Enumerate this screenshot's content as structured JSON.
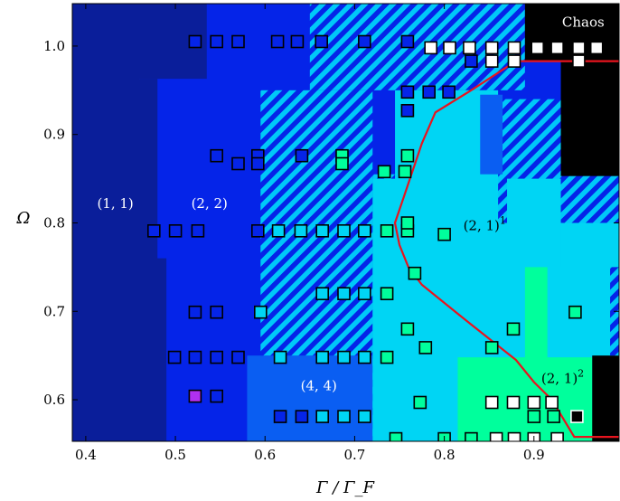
{
  "chart_data": {
    "type": "scatter",
    "title": "",
    "xlabel": "Γ / Γ_F",
    "ylabel": "Ω",
    "xlim": [
      0.385,
      0.995
    ],
    "ylim": [
      0.553,
      1.048
    ],
    "x_ticks": [
      "0.4",
      "0.5",
      "0.6",
      "0.7",
      "0.8",
      "0.9"
    ],
    "y_ticks": [
      "0.6",
      "0.7",
      "0.8",
      "0.9",
      "1.0"
    ],
    "grid": false,
    "colors": {
      "c11": "#0a1e9a",
      "c22": "#0524e8",
      "c44": "#0a5ef2",
      "c21_1": "#00d5f4",
      "c21_2": "#00ff9c",
      "chaos": "#000000",
      "stripe": "#00c8f8",
      "boundary": "#e8141e"
    },
    "regions": [
      {
        "label": "(1, 1)",
        "sup": "",
        "color": "c11",
        "label_at": [
          0.433,
          0.822
        ]
      },
      {
        "label": "(2, 2)",
        "sup": "",
        "color": "c22",
        "label_at": [
          0.538,
          0.822
        ]
      },
      {
        "label": "(4, 4)",
        "sup": "",
        "color": "c44",
        "label_at": [
          0.66,
          0.616
        ]
      },
      {
        "label": "(2, 1)",
        "sup": "1",
        "color": "c21_1",
        "label_at": [
          0.845,
          0.797
        ]
      },
      {
        "label": "(2, 1)",
        "sup": "2",
        "color": "c21_2",
        "label_at": [
          0.932,
          0.624
        ]
      },
      {
        "label": "Chaos",
        "sup": "",
        "color": "chaos",
        "label_at": [
          0.955,
          1.027
        ]
      }
    ],
    "boundary_curve": {
      "name": "",
      "x": [
        0.995,
        0.88,
        0.83,
        0.79,
        0.775,
        0.755,
        0.745,
        0.75,
        0.76,
        0.775,
        0.83,
        0.88,
        0.9,
        0.92,
        0.945,
        0.995
      ],
      "y": [
        0.983,
        0.983,
        0.95,
        0.925,
        0.89,
        0.83,
        0.8,
        0.775,
        0.75,
        0.73,
        0.685,
        0.645,
        0.62,
        0.6,
        0.558,
        0.558
      ]
    },
    "markers": [
      {
        "x": 0.522,
        "y": 1.005,
        "c": "c22"
      },
      {
        "x": 0.546,
        "y": 1.005,
        "c": "c22"
      },
      {
        "x": 0.57,
        "y": 1.005,
        "c": "c22"
      },
      {
        "x": 0.614,
        "y": 1.005,
        "c": "c22"
      },
      {
        "x": 0.636,
        "y": 1.005,
        "c": "c22"
      },
      {
        "x": 0.663,
        "y": 1.005,
        "c": "c22"
      },
      {
        "x": 0.711,
        "y": 1.005,
        "c": "c22"
      },
      {
        "x": 0.759,
        "y": 1.005,
        "c": "c22"
      },
      {
        "x": 0.785,
        "y": 0.998,
        "c": "w"
      },
      {
        "x": 0.806,
        "y": 0.998,
        "c": "w"
      },
      {
        "x": 0.828,
        "y": 0.998,
        "c": "w"
      },
      {
        "x": 0.853,
        "y": 0.998,
        "c": "w"
      },
      {
        "x": 0.853,
        "y": 0.983,
        "c": "w"
      },
      {
        "x": 0.878,
        "y": 0.998,
        "c": "w"
      },
      {
        "x": 0.878,
        "y": 0.983,
        "c": "w"
      },
      {
        "x": 0.904,
        "y": 0.998,
        "c": "w"
      },
      {
        "x": 0.926,
        "y": 0.998,
        "c": "w"
      },
      {
        "x": 0.95,
        "y": 0.998,
        "c": "w"
      },
      {
        "x": 0.97,
        "y": 0.998,
        "c": "w"
      },
      {
        "x": 0.95,
        "y": 0.983,
        "c": "w"
      },
      {
        "x": 0.83,
        "y": 0.983,
        "c": "c22"
      },
      {
        "x": 0.759,
        "y": 0.948,
        "c": "c22"
      },
      {
        "x": 0.783,
        "y": 0.948,
        "c": "c22"
      },
      {
        "x": 0.805,
        "y": 0.948,
        "c": "c22"
      },
      {
        "x": 0.759,
        "y": 0.927,
        "c": "c22"
      },
      {
        "x": 0.546,
        "y": 0.876,
        "c": "c22"
      },
      {
        "x": 0.57,
        "y": 0.867,
        "c": "c22"
      },
      {
        "x": 0.592,
        "y": 0.876,
        "c": "c22"
      },
      {
        "x": 0.592,
        "y": 0.867,
        "c": "c22"
      },
      {
        "x": 0.641,
        "y": 0.876,
        "c": "c22"
      },
      {
        "x": 0.686,
        "y": 0.876,
        "c": "c21_2"
      },
      {
        "x": 0.686,
        "y": 0.867,
        "c": "c21_2"
      },
      {
        "x": 0.759,
        "y": 0.876,
        "c": "c21_2"
      },
      {
        "x": 0.756,
        "y": 0.858,
        "c": "c21_2"
      },
      {
        "x": 0.733,
        "y": 0.858,
        "c": "c21_2"
      },
      {
        "x": 0.476,
        "y": 0.791,
        "c": "c22"
      },
      {
        "x": 0.5,
        "y": 0.791,
        "c": "c22"
      },
      {
        "x": 0.525,
        "y": 0.791,
        "c": "c22"
      },
      {
        "x": 0.592,
        "y": 0.791,
        "c": "c22"
      },
      {
        "x": 0.615,
        "y": 0.791,
        "c": "c21_1"
      },
      {
        "x": 0.64,
        "y": 0.791,
        "c": "c21_1"
      },
      {
        "x": 0.664,
        "y": 0.791,
        "c": "c21_1"
      },
      {
        "x": 0.688,
        "y": 0.791,
        "c": "c21_1"
      },
      {
        "x": 0.711,
        "y": 0.791,
        "c": "c21_1"
      },
      {
        "x": 0.736,
        "y": 0.791,
        "c": "c21_2"
      },
      {
        "x": 0.759,
        "y": 0.791,
        "c": "c21_2"
      },
      {
        "x": 0.759,
        "y": 0.8,
        "c": "c21_2"
      },
      {
        "x": 0.8,
        "y": 0.787,
        "c": "c21_2"
      },
      {
        "x": 0.767,
        "y": 0.743,
        "c": "c21_2"
      },
      {
        "x": 0.595,
        "y": 0.699,
        "c": "c21_1"
      },
      {
        "x": 0.664,
        "y": 0.72,
        "c": "c21_1"
      },
      {
        "x": 0.688,
        "y": 0.72,
        "c": "c21_1"
      },
      {
        "x": 0.711,
        "y": 0.72,
        "c": "c21_1"
      },
      {
        "x": 0.736,
        "y": 0.72,
        "c": "c21_2"
      },
      {
        "x": 0.522,
        "y": 0.699,
        "c": "c22"
      },
      {
        "x": 0.546,
        "y": 0.699,
        "c": "c22"
      },
      {
        "x": 0.759,
        "y": 0.68,
        "c": "c21_2"
      },
      {
        "x": 0.877,
        "y": 0.68,
        "c": "c21_2"
      },
      {
        "x": 0.946,
        "y": 0.699,
        "c": "c21_2"
      },
      {
        "x": 0.499,
        "y": 0.648,
        "c": "c22"
      },
      {
        "x": 0.522,
        "y": 0.648,
        "c": "c22"
      },
      {
        "x": 0.546,
        "y": 0.648,
        "c": "c22"
      },
      {
        "x": 0.57,
        "y": 0.648,
        "c": "c22"
      },
      {
        "x": 0.617,
        "y": 0.648,
        "c": "c21_1"
      },
      {
        "x": 0.664,
        "y": 0.648,
        "c": "c21_1"
      },
      {
        "x": 0.688,
        "y": 0.648,
        "c": "c21_1"
      },
      {
        "x": 0.711,
        "y": 0.648,
        "c": "c21_1"
      },
      {
        "x": 0.736,
        "y": 0.648,
        "c": "c21_2"
      },
      {
        "x": 0.779,
        "y": 0.659,
        "c": "c21_2"
      },
      {
        "x": 0.853,
        "y": 0.659,
        "c": "c21_2"
      },
      {
        "x": 0.522,
        "y": 0.604,
        "c": "p"
      },
      {
        "x": 0.546,
        "y": 0.604,
        "c": "c22"
      },
      {
        "x": 0.617,
        "y": 0.581,
        "c": "c22"
      },
      {
        "x": 0.641,
        "y": 0.581,
        "c": "c22"
      },
      {
        "x": 0.664,
        "y": 0.581,
        "c": "c21_1"
      },
      {
        "x": 0.688,
        "y": 0.581,
        "c": "c21_1"
      },
      {
        "x": 0.711,
        "y": 0.581,
        "c": "c21_1"
      },
      {
        "x": 0.773,
        "y": 0.597,
        "c": "c21_2"
      },
      {
        "x": 0.853,
        "y": 0.597,
        "c": "w"
      },
      {
        "x": 0.877,
        "y": 0.597,
        "c": "w"
      },
      {
        "x": 0.9,
        "y": 0.597,
        "c": "w"
      },
      {
        "x": 0.92,
        "y": 0.597,
        "c": "w"
      },
      {
        "x": 0.9,
        "y": 0.581,
        "c": "c21_2"
      },
      {
        "x": 0.922,
        "y": 0.581,
        "c": "c21_2"
      },
      {
        "x": 0.948,
        "y": 0.581,
        "c": "k"
      },
      {
        "x": 0.746,
        "y": 0.556,
        "c": "c21_2"
      },
      {
        "x": 0.8,
        "y": 0.556,
        "c": "c21_2"
      },
      {
        "x": 0.83,
        "y": 0.556,
        "c": "c21_2"
      },
      {
        "x": 0.858,
        "y": 0.556,
        "c": "w"
      },
      {
        "x": 0.878,
        "y": 0.556,
        "c": "w"
      },
      {
        "x": 0.9,
        "y": 0.556,
        "c": "w"
      },
      {
        "x": 0.926,
        "y": 0.556,
        "c": "w"
      }
    ]
  }
}
